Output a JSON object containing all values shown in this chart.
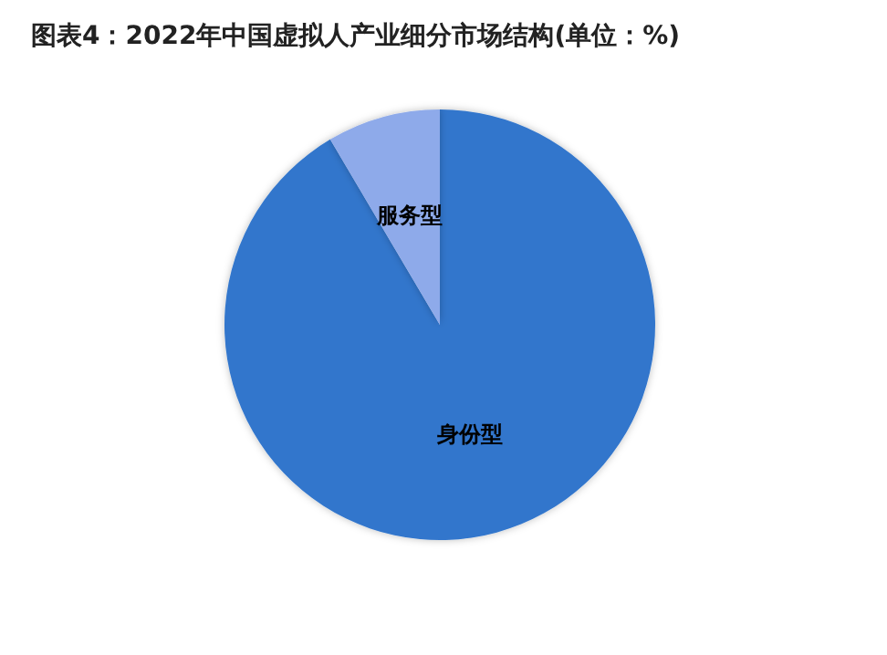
{
  "chart_data": {
    "type": "pie",
    "title": "图表4：2022年中国虚拟人产业细分市场结构(单位：%)",
    "categories": [
      "身份型",
      "服务型"
    ],
    "values": [
      91.5,
      8.5
    ],
    "colors": [
      "#3276cc",
      "#8eaaea"
    ],
    "legend": false
  }
}
